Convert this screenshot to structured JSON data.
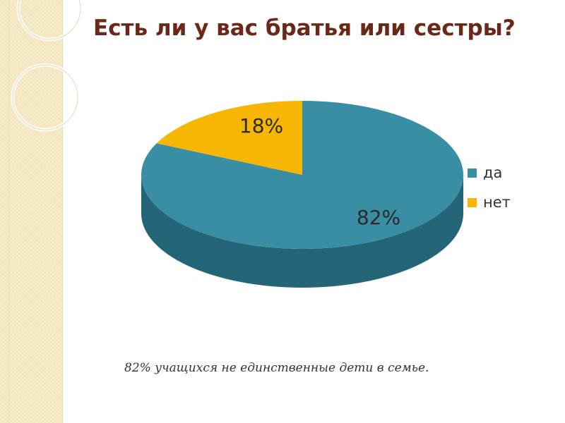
{
  "slide": {
    "title": "Есть ли у вас братья или сестры?",
    "caption": "82% учащихся не единственные дети в семье."
  },
  "colors": {
    "title": "#6b2818",
    "band": "#f7ecc9",
    "yes_top": "#3a8ea3",
    "yes_side": "#246577",
    "no_top": "#f7b504",
    "no_side": "#c98f00",
    "label": "#2a2a2a"
  },
  "chart_data": {
    "type": "pie",
    "style": "3d",
    "categories": [
      "да",
      "нет"
    ],
    "values": [
      82,
      18
    ],
    "labels": [
      "82%",
      "18%"
    ],
    "legend": "right"
  }
}
